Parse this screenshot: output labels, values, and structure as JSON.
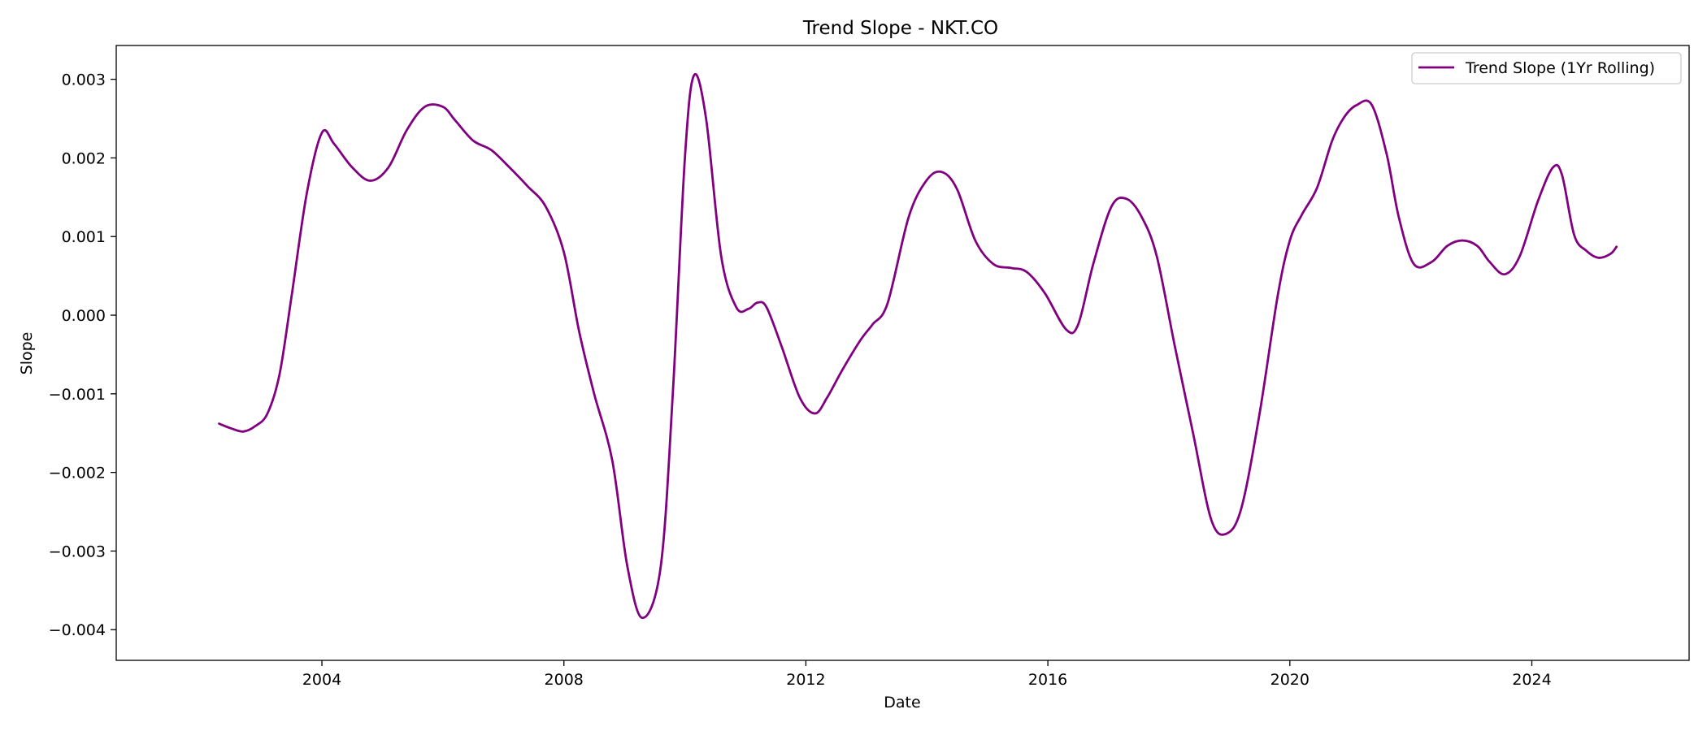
{
  "chart_data": {
    "type": "line",
    "title": "Trend Slope - NKT.CO",
    "xlabel": "Date",
    "ylabel": "Slope",
    "xlim": [
      2000.6,
      2026.6
    ],
    "ylim": [
      -0.00439,
      0.00343
    ],
    "xticks": [
      2004,
      2008,
      2012,
      2016,
      2020,
      2024
    ],
    "xtick_labels": [
      "2004",
      "2008",
      "2012",
      "2016",
      "2020",
      "2024"
    ],
    "yticks": [
      -0.004,
      -0.003,
      -0.002,
      -0.001,
      0.0,
      0.001,
      0.002,
      0.003
    ],
    "ytick_labels": [
      "−0.004",
      "−0.003",
      "−0.002",
      "−0.001",
      "0.000",
      "0.001",
      "0.002",
      "0.003"
    ],
    "grid": false,
    "legend_position": "top-right",
    "series": [
      {
        "name": "Trend Slope (1Yr Rolling)",
        "color": "#800080",
        "x": [
          2002.3,
          2002.5,
          2002.7,
          2002.9,
          2003.1,
          2003.3,
          2003.5,
          2003.75,
          2004.0,
          2004.2,
          2004.5,
          2004.8,
          2005.1,
          2005.4,
          2005.7,
          2006.0,
          2006.2,
          2006.5,
          2006.8,
          2007.1,
          2007.4,
          2007.7,
          2008.0,
          2008.25,
          2008.5,
          2008.8,
          2009.05,
          2009.3,
          2009.6,
          2009.8,
          2010.0,
          2010.15,
          2010.35,
          2010.6,
          2010.85,
          2011.05,
          2011.2,
          2011.35,
          2011.6,
          2011.9,
          2012.15,
          2012.35,
          2012.6,
          2012.9,
          2013.1,
          2013.35,
          2013.7,
          2014.0,
          2014.25,
          2014.5,
          2014.8,
          2015.1,
          2015.4,
          2015.65,
          2015.95,
          2016.3,
          2016.5,
          2016.75,
          2017.05,
          2017.3,
          2017.55,
          2017.8,
          2018.1,
          2018.4,
          2018.7,
          2018.95,
          2019.2,
          2019.5,
          2019.8,
          2020.0,
          2020.2,
          2020.45,
          2020.7,
          2020.9,
          2021.1,
          2021.35,
          2021.6,
          2021.8,
          2022.05,
          2022.35,
          2022.6,
          2022.85,
          2023.1,
          2023.3,
          2023.55,
          2023.8,
          2024.1,
          2024.35,
          2024.5,
          2024.7,
          2024.9,
          2025.1,
          2025.3,
          2025.4
        ],
        "y": [
          -0.00138,
          -0.00144,
          -0.00148,
          -0.00141,
          -0.00125,
          -0.00075,
          0.00025,
          0.00155,
          0.00232,
          0.00218,
          0.00188,
          0.00171,
          0.00188,
          0.00235,
          0.00265,
          0.00265,
          0.00248,
          0.00222,
          0.0021,
          0.00188,
          0.00164,
          0.00138,
          0.0008,
          -0.0002,
          -0.001,
          -0.00185,
          -0.0032,
          -0.00385,
          -0.0032,
          -0.001,
          0.002,
          0.00305,
          0.0025,
          0.00075,
          0.0001,
          8e-05,
          0.00016,
          0.0001,
          -0.0004,
          -0.00105,
          -0.00125,
          -0.00105,
          -0.0007,
          -0.00032,
          -0.00012,
          0.00015,
          0.00125,
          0.00172,
          0.00182,
          0.0016,
          0.00095,
          0.00065,
          0.0006,
          0.00055,
          0.00028,
          -0.00018,
          -0.00012,
          0.00065,
          0.00138,
          0.00148,
          0.00125,
          0.00075,
          -0.0004,
          -0.0015,
          -0.0026,
          -0.00278,
          -0.00245,
          -0.00125,
          0.00025,
          0.00095,
          0.00128,
          0.00162,
          0.00222,
          0.00252,
          0.00267,
          0.00268,
          0.00205,
          0.00125,
          0.00065,
          0.00068,
          0.00088,
          0.00095,
          0.00088,
          0.00068,
          0.00052,
          0.00075,
          0.00145,
          0.00188,
          0.00178,
          0.00102,
          0.00082,
          0.00073,
          0.00078,
          0.00087
        ]
      }
    ]
  }
}
